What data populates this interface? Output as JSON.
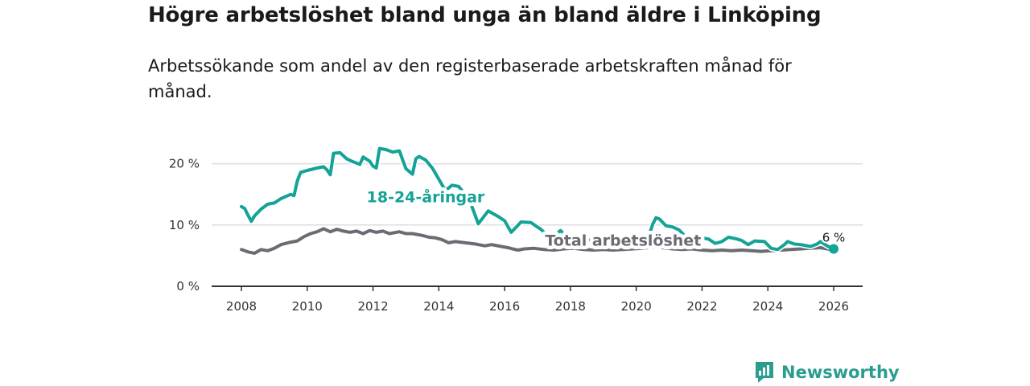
{
  "header": {
    "title": "Högre arbetslöshet bland unga än bland äldre i Linköping",
    "subtitle": "Arbetssökande som andel av den registerbaserade arbetskraften månad för månad."
  },
  "brand": {
    "name": "Newsworthy",
    "icon": "bar-chart-speech-icon"
  },
  "colors": {
    "youth": "#14a397",
    "total": "#6b6b73",
    "grid": "#dddddd",
    "axis": "#333333",
    "brand": "#2a9d8f"
  },
  "chart_data": {
    "type": "line",
    "title": "Högre arbetslöshet bland unga än bland äldre i Linköping",
    "subtitle": "Arbetssökande som andel av den registerbaserade arbetskraften månad för månad.",
    "xlabel": "",
    "ylabel": "",
    "xlim": [
      2007.4,
      2026.9
    ],
    "ylim": [
      0,
      22
    ],
    "x_ticks": [
      {
        "value": 2008,
        "label": "2008"
      },
      {
        "value": 2010,
        "label": "2010"
      },
      {
        "value": 2012,
        "label": "2012"
      },
      {
        "value": 2014,
        "label": "2014"
      },
      {
        "value": 2016,
        "label": "2016"
      },
      {
        "value": 2018,
        "label": "2018"
      },
      {
        "value": 2020,
        "label": "2020"
      },
      {
        "value": 2022,
        "label": "2022"
      },
      {
        "value": 2024,
        "label": "2024"
      },
      {
        "value": 2026,
        "label": "2026"
      }
    ],
    "y_ticks": [
      {
        "value": 0,
        "label": "0 %"
      },
      {
        "value": 10,
        "label": "10 %"
      },
      {
        "value": 20,
        "label": "20 %"
      }
    ],
    "grid": true,
    "series": [
      {
        "name": "18-24-åringar",
        "label_at": [
          2013.6,
          13.7
        ],
        "end_label": "6 %",
        "points": [
          [
            2008.0,
            13.0
          ],
          [
            2008.1,
            12.7
          ],
          [
            2008.2,
            11.6
          ],
          [
            2008.3,
            10.6
          ],
          [
            2008.4,
            11.5
          ],
          [
            2008.6,
            12.6
          ],
          [
            2008.8,
            13.4
          ],
          [
            2009.0,
            13.6
          ],
          [
            2009.2,
            14.3
          ],
          [
            2009.5,
            15.0
          ],
          [
            2009.6,
            14.8
          ],
          [
            2009.7,
            17.2
          ],
          [
            2009.8,
            18.6
          ],
          [
            2010.0,
            18.9
          ],
          [
            2010.3,
            19.3
          ],
          [
            2010.5,
            19.5
          ],
          [
            2010.6,
            19.0
          ],
          [
            2010.7,
            18.2
          ],
          [
            2010.8,
            21.7
          ],
          [
            2011.0,
            21.8
          ],
          [
            2011.2,
            20.8
          ],
          [
            2011.4,
            20.3
          ],
          [
            2011.6,
            19.9
          ],
          [
            2011.7,
            21.1
          ],
          [
            2011.9,
            20.4
          ],
          [
            2012.0,
            19.6
          ],
          [
            2012.1,
            19.3
          ],
          [
            2012.2,
            22.5
          ],
          [
            2012.4,
            22.3
          ],
          [
            2012.6,
            21.9
          ],
          [
            2012.8,
            22.1
          ],
          [
            2013.0,
            19.2
          ],
          [
            2013.2,
            18.3
          ],
          [
            2013.3,
            20.8
          ],
          [
            2013.4,
            21.2
          ],
          [
            2013.6,
            20.6
          ],
          [
            2013.8,
            19.3
          ],
          [
            2014.0,
            17.5
          ],
          [
            2014.2,
            15.6
          ],
          [
            2014.4,
            16.5
          ],
          [
            2014.6,
            16.3
          ],
          [
            2014.8,
            15.0
          ],
          [
            2015.0,
            13.1
          ],
          [
            2015.2,
            10.2
          ],
          [
            2015.5,
            12.3
          ],
          [
            2015.8,
            11.4
          ],
          [
            2016.0,
            10.7
          ],
          [
            2016.2,
            8.8
          ],
          [
            2016.5,
            10.5
          ],
          [
            2016.8,
            10.4
          ],
          [
            2017.1,
            9.3
          ],
          [
            2017.4,
            7.8
          ],
          [
            2017.7,
            9.1
          ],
          [
            2017.9,
            8.0
          ],
          [
            2018.1,
            7.1
          ],
          [
            2018.3,
            8.0
          ],
          [
            2018.6,
            7.5
          ],
          [
            2018.8,
            7.0
          ],
          [
            2019.1,
            7.5
          ],
          [
            2019.3,
            6.6
          ],
          [
            2019.6,
            7.2
          ],
          [
            2019.8,
            7.6
          ],
          [
            2020.0,
            7.5
          ],
          [
            2020.2,
            7.7
          ],
          [
            2020.4,
            8.5
          ],
          [
            2020.5,
            10.1
          ],
          [
            2020.6,
            11.2
          ],
          [
            2020.7,
            11.0
          ],
          [
            2020.9,
            9.9
          ],
          [
            2021.1,
            9.7
          ],
          [
            2021.3,
            9.2
          ],
          [
            2021.5,
            8.1
          ],
          [
            2021.7,
            8.0
          ],
          [
            2022.0,
            7.9
          ],
          [
            2022.2,
            7.7
          ],
          [
            2022.4,
            7.0
          ],
          [
            2022.6,
            7.3
          ],
          [
            2022.8,
            8.0
          ],
          [
            2023.0,
            7.8
          ],
          [
            2023.2,
            7.5
          ],
          [
            2023.4,
            6.8
          ],
          [
            2023.6,
            7.4
          ],
          [
            2023.9,
            7.3
          ],
          [
            2024.1,
            6.2
          ],
          [
            2024.3,
            6.0
          ],
          [
            2024.5,
            6.8
          ],
          [
            2024.6,
            7.3
          ],
          [
            2024.8,
            6.9
          ],
          [
            2025.0,
            6.8
          ],
          [
            2025.3,
            6.5
          ],
          [
            2025.5,
            6.9
          ],
          [
            2025.6,
            7.3
          ],
          [
            2025.8,
            6.6
          ],
          [
            2026.0,
            6.1
          ]
        ]
      },
      {
        "name": "Total arbetslöshet",
        "label_at": [
          2019.6,
          6.6
        ],
        "points": [
          [
            2008.0,
            6.0
          ],
          [
            2008.2,
            5.6
          ],
          [
            2008.4,
            5.4
          ],
          [
            2008.6,
            6.0
          ],
          [
            2008.8,
            5.8
          ],
          [
            2009.0,
            6.2
          ],
          [
            2009.2,
            6.8
          ],
          [
            2009.5,
            7.2
          ],
          [
            2009.7,
            7.4
          ],
          [
            2009.9,
            8.1
          ],
          [
            2010.1,
            8.6
          ],
          [
            2010.3,
            8.9
          ],
          [
            2010.5,
            9.4
          ],
          [
            2010.7,
            8.9
          ],
          [
            2010.9,
            9.3
          ],
          [
            2011.1,
            9.0
          ],
          [
            2011.3,
            8.8
          ],
          [
            2011.5,
            9.0
          ],
          [
            2011.7,
            8.6
          ],
          [
            2011.9,
            9.1
          ],
          [
            2012.1,
            8.8
          ],
          [
            2012.3,
            9.0
          ],
          [
            2012.5,
            8.6
          ],
          [
            2012.8,
            8.9
          ],
          [
            2013.0,
            8.6
          ],
          [
            2013.2,
            8.6
          ],
          [
            2013.5,
            8.3
          ],
          [
            2013.7,
            8.0
          ],
          [
            2013.9,
            7.9
          ],
          [
            2014.1,
            7.6
          ],
          [
            2014.3,
            7.1
          ],
          [
            2014.5,
            7.3
          ],
          [
            2014.8,
            7.1
          ],
          [
            2015.1,
            6.9
          ],
          [
            2015.4,
            6.6
          ],
          [
            2015.6,
            6.8
          ],
          [
            2015.9,
            6.5
          ],
          [
            2016.1,
            6.3
          ],
          [
            2016.4,
            5.9
          ],
          [
            2016.6,
            6.1
          ],
          [
            2016.9,
            6.2
          ],
          [
            2017.2,
            6.0
          ],
          [
            2017.5,
            5.9
          ],
          [
            2017.8,
            6.1
          ],
          [
            2018.1,
            6.2
          ],
          [
            2018.4,
            6.0
          ],
          [
            2018.7,
            5.9
          ],
          [
            2019.0,
            6.0
          ],
          [
            2019.3,
            5.9
          ],
          [
            2019.6,
            6.0
          ],
          [
            2019.9,
            6.1
          ],
          [
            2020.2,
            6.2
          ],
          [
            2020.5,
            6.4
          ],
          [
            2020.8,
            6.3
          ],
          [
            2021.1,
            6.1
          ],
          [
            2021.4,
            6.0
          ],
          [
            2021.7,
            6.1
          ],
          [
            2022.0,
            5.9
          ],
          [
            2022.3,
            5.8
          ],
          [
            2022.6,
            5.9
          ],
          [
            2022.9,
            5.8
          ],
          [
            2023.2,
            5.9
          ],
          [
            2023.5,
            5.8
          ],
          [
            2023.8,
            5.7
          ],
          [
            2024.1,
            5.8
          ],
          [
            2024.4,
            5.9
          ],
          [
            2024.7,
            6.0
          ],
          [
            2025.0,
            6.1
          ],
          [
            2025.3,
            6.2
          ],
          [
            2025.6,
            6.3
          ],
          [
            2025.8,
            6.1
          ],
          [
            2026.0,
            6.0
          ]
        ]
      }
    ]
  }
}
